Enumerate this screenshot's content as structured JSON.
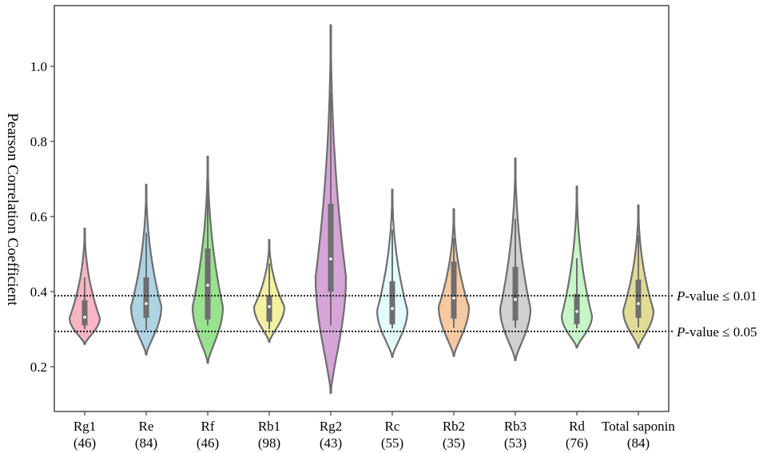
{
  "chart_data": {
    "type": "violin",
    "title": "",
    "xlabel": "",
    "ylabel": "Pearson Correlation Coefficient",
    "ylim": [
      0.08,
      1.15
    ],
    "yticks": [
      0.2,
      0.4,
      0.6,
      0.8,
      1.0
    ],
    "ytick_labels": [
      "0.2",
      "0.4",
      "0.6",
      "0.8",
      "1.0"
    ],
    "grid": false,
    "categories": [
      {
        "name": "Rg1",
        "n": "(46)",
        "color": "#f7b6c2",
        "min": 0.26,
        "whisker_low": 0.3,
        "q1": 0.31,
        "median": 0.332,
        "q3": 0.377,
        "whisker_high": 0.438,
        "max": 0.568,
        "mode": 0.33
      },
      {
        "name": "Re",
        "n": "(84)",
        "color": "#aed3e3",
        "min": 0.232,
        "whisker_low": 0.298,
        "q1": 0.33,
        "median": 0.368,
        "q3": 0.438,
        "whisker_high": 0.557,
        "max": 0.685,
        "mode": 0.36
      },
      {
        "name": "Rf",
        "n": "(46)",
        "color": "#99e28f",
        "min": 0.21,
        "whisker_low": 0.31,
        "q1": 0.326,
        "median": 0.417,
        "q3": 0.515,
        "whisker_high": 0.66,
        "max": 0.76,
        "mode": 0.36
      },
      {
        "name": "Rb1",
        "n": "(98)",
        "color": "#f2f2a0",
        "min": 0.266,
        "whisker_low": 0.3,
        "q1": 0.32,
        "median": 0.36,
        "q3": 0.39,
        "whisker_high": 0.475,
        "max": 0.538,
        "mode": 0.36
      },
      {
        "name": "Rg2",
        "n": "(43)",
        "color": "#d6a4d7",
        "min": 0.13,
        "whisker_low": 0.31,
        "q1": 0.4,
        "median": 0.487,
        "q3": 0.634,
        "whisker_high": 0.93,
        "max": 1.11,
        "mode": 0.44
      },
      {
        "name": "Rc",
        "n": "(55)",
        "color": "#e3fbfb",
        "min": 0.226,
        "whisker_low": 0.302,
        "q1": 0.313,
        "median": 0.355,
        "q3": 0.428,
        "whisker_high": 0.565,
        "max": 0.672,
        "mode": 0.35
      },
      {
        "name": "Rb2",
        "n": "(35)",
        "color": "#f6c9a3",
        "min": 0.228,
        "whisker_low": 0.304,
        "q1": 0.328,
        "median": 0.383,
        "q3": 0.48,
        "whisker_high": 0.543,
        "max": 0.62,
        "mode": 0.36
      },
      {
        "name": "Rb3",
        "n": "(53)",
        "color": "#d0d0d0",
        "min": 0.217,
        "whisker_low": 0.304,
        "q1": 0.323,
        "median": 0.379,
        "q3": 0.466,
        "whisker_high": 0.594,
        "max": 0.755,
        "mode": 0.355
      },
      {
        "name": "Rd",
        "n": "(76)",
        "color": "#c6f6c6",
        "min": 0.251,
        "whisker_low": 0.302,
        "q1": 0.313,
        "median": 0.347,
        "q3": 0.394,
        "whisker_high": 0.489,
        "max": 0.68,
        "mode": 0.335
      },
      {
        "name": "Total saponin",
        "n": "(84)",
        "color": "#e0dc95",
        "min": 0.25,
        "whisker_low": 0.305,
        "q1": 0.33,
        "median": 0.368,
        "q3": 0.432,
        "whisker_high": 0.55,
        "max": 0.63,
        "mode": 0.35
      }
    ],
    "reference_lines": [
      {
        "value": 0.389,
        "label_prefix": "P",
        "label_rest": "-value ≤ 0.01",
        "style": "dotted"
      },
      {
        "value": 0.294,
        "label_prefix": "P",
        "label_rest": "-value ≤ 0.05",
        "style": "dotted"
      }
    ],
    "outline_color": "#6e6e6e",
    "box_color": "#6e6e6e",
    "median_color": "#ffffff"
  }
}
